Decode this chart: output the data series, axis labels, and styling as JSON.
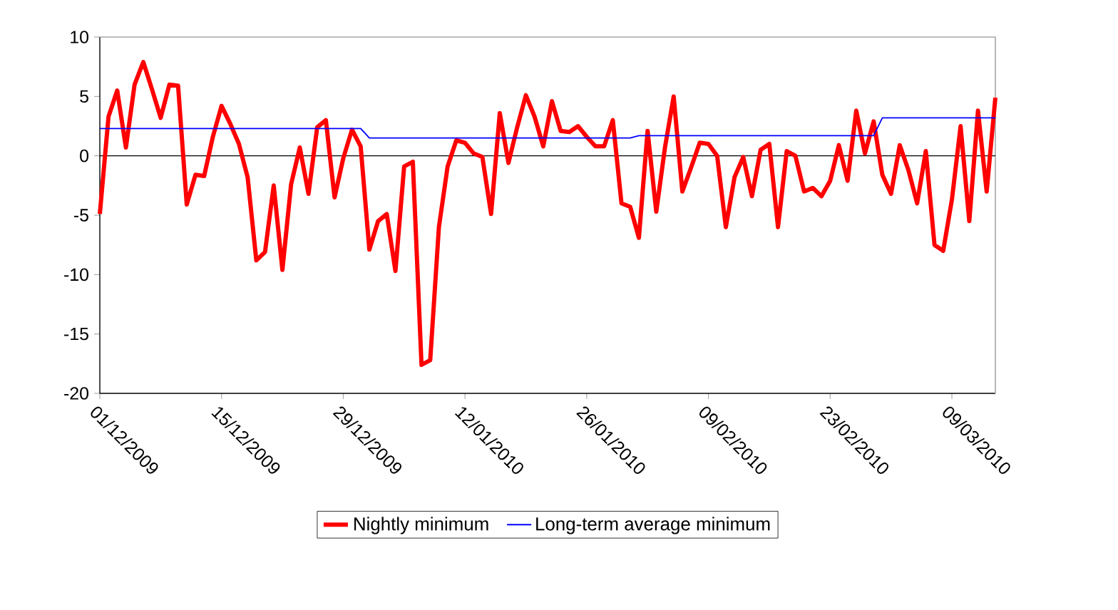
{
  "chart_data": {
    "type": "line",
    "x": [
      "2009-12-01",
      "2009-12-02",
      "2009-12-03",
      "2009-12-04",
      "2009-12-05",
      "2009-12-06",
      "2009-12-07",
      "2009-12-08",
      "2009-12-09",
      "2009-12-10",
      "2009-12-11",
      "2009-12-12",
      "2009-12-13",
      "2009-12-14",
      "2009-12-15",
      "2009-12-16",
      "2009-12-17",
      "2009-12-18",
      "2009-12-19",
      "2009-12-20",
      "2009-12-21",
      "2009-12-22",
      "2009-12-23",
      "2009-12-24",
      "2009-12-25",
      "2009-12-26",
      "2009-12-27",
      "2009-12-28",
      "2009-12-29",
      "2009-12-30",
      "2009-12-31",
      "2010-01-01",
      "2010-01-02",
      "2010-01-03",
      "2010-01-04",
      "2010-01-05",
      "2010-01-06",
      "2010-01-07",
      "2010-01-08",
      "2010-01-09",
      "2010-01-10",
      "2010-01-11",
      "2010-01-12",
      "2010-01-13",
      "2010-01-14",
      "2010-01-15",
      "2010-01-16",
      "2010-01-17",
      "2010-01-18",
      "2010-01-19",
      "2010-01-20",
      "2010-01-21",
      "2010-01-22",
      "2010-01-23",
      "2010-01-24",
      "2010-01-25",
      "2010-01-26",
      "2010-01-27",
      "2010-01-28",
      "2010-01-29",
      "2010-01-30",
      "2010-01-31",
      "2010-02-01",
      "2010-02-02",
      "2010-02-03",
      "2010-02-04",
      "2010-02-05",
      "2010-02-06",
      "2010-02-07",
      "2010-02-08",
      "2010-02-09",
      "2010-02-10",
      "2010-02-11",
      "2010-02-12",
      "2010-02-13",
      "2010-02-14",
      "2010-02-15",
      "2010-02-16",
      "2010-02-17",
      "2010-02-18",
      "2010-02-19",
      "2010-02-20",
      "2010-02-21",
      "2010-02-22",
      "2010-02-23",
      "2010-02-24",
      "2010-02-25",
      "2010-02-26",
      "2010-02-27",
      "2010-02-28",
      "2010-03-01",
      "2010-03-02",
      "2010-03-03",
      "2010-03-04",
      "2010-03-05",
      "2010-03-06",
      "2010-03-07",
      "2010-03-08",
      "2010-03-09",
      "2010-03-10",
      "2010-03-11",
      "2010-03-12",
      "2010-03-13",
      "2010-03-14"
    ],
    "series": [
      {
        "name": "Nightly minimum",
        "color": "#ff0000",
        "values": [
          -4.9,
          3.3,
          5.5,
          0.7,
          6.0,
          7.9,
          5.6,
          3.2,
          6.0,
          5.9,
          -4.1,
          -1.6,
          -1.7,
          1.6,
          4.2,
          2.7,
          1.0,
          -1.8,
          -8.8,
          -8.1,
          -2.5,
          -9.6,
          -2.4,
          0.7,
          -3.2,
          2.4,
          3.0,
          -3.5,
          -0.2,
          2.2,
          0.8,
          -7.9,
          -5.5,
          -4.9,
          -9.7,
          -0.9,
          -0.5,
          -17.6,
          -17.2,
          -6.0,
          -0.9,
          1.3,
          1.1,
          0.2,
          -0.1,
          -4.9,
          3.6,
          -0.6,
          2.4,
          5.1,
          3.3,
          0.8,
          4.6,
          2.1,
          2.0,
          2.5,
          1.6,
          0.8,
          0.8,
          3.0,
          -4.0,
          -4.3,
          -6.9,
          2.1,
          -4.7,
          0.7,
          5.0,
          -3.0,
          -1.0,
          1.1,
          1.0,
          0.0,
          -6.0,
          -1.8,
          -0.1,
          -3.4,
          0.5,
          1.0,
          -6.0,
          0.4,
          0.0,
          -3.0,
          -2.7,
          -3.4,
          -2.1,
          0.9,
          -2.1,
          3.8,
          0.2,
          2.9,
          -1.6,
          -3.2,
          0.9,
          -1.2,
          -4.0,
          0.4,
          -7.5,
          -8.0,
          -3.7,
          2.5,
          -5.5,
          3.8,
          -3.0,
          4.9
        ]
      },
      {
        "name": "Long-term average minimum",
        "color": "#0000ff",
        "values": [
          2.3,
          2.3,
          2.3,
          2.3,
          2.3,
          2.3,
          2.3,
          2.3,
          2.3,
          2.3,
          2.3,
          2.3,
          2.3,
          2.3,
          2.3,
          2.3,
          2.3,
          2.3,
          2.3,
          2.3,
          2.3,
          2.3,
          2.3,
          2.3,
          2.3,
          2.3,
          2.3,
          2.3,
          2.3,
          2.3,
          2.3,
          1.5,
          1.5,
          1.5,
          1.5,
          1.5,
          1.5,
          1.5,
          1.5,
          1.5,
          1.5,
          1.5,
          1.5,
          1.5,
          1.5,
          1.5,
          1.5,
          1.5,
          1.5,
          1.5,
          1.5,
          1.5,
          1.5,
          1.5,
          1.5,
          1.5,
          1.5,
          1.5,
          1.5,
          1.5,
          1.5,
          1.5,
          1.7,
          1.7,
          1.7,
          1.7,
          1.7,
          1.7,
          1.7,
          1.7,
          1.7,
          1.7,
          1.7,
          1.7,
          1.7,
          1.7,
          1.7,
          1.7,
          1.7,
          1.7,
          1.7,
          1.7,
          1.7,
          1.7,
          1.7,
          1.7,
          1.7,
          1.7,
          1.7,
          1.7,
          3.2,
          3.2,
          3.2,
          3.2,
          3.2,
          3.2,
          3.2,
          3.2,
          3.2,
          3.2,
          3.2,
          3.2,
          3.2,
          3.2
        ]
      }
    ],
    "xlim": [
      "2009-12-01",
      "2010-03-14"
    ],
    "xticks": [
      {
        "value": "2009-12-01",
        "label": "01/12/2009"
      },
      {
        "value": "2009-12-15",
        "label": "15/12/2009"
      },
      {
        "value": "2009-12-29",
        "label": "29/12/2009"
      },
      {
        "value": "2010-01-12",
        "label": "12/01/2010"
      },
      {
        "value": "2010-01-26",
        "label": "26/01/2010"
      },
      {
        "value": "2010-02-09",
        "label": "09/02/2010"
      },
      {
        "value": "2010-02-23",
        "label": "23/02/2010"
      },
      {
        "value": "2010-03-09",
        "label": "09/03/2010"
      }
    ],
    "ylim": [
      -20,
      10
    ],
    "yticks": [
      -20,
      -15,
      -10,
      -5,
      0,
      5,
      10
    ],
    "legend": "bottom",
    "marker": "none",
    "line_style": "solid"
  }
}
